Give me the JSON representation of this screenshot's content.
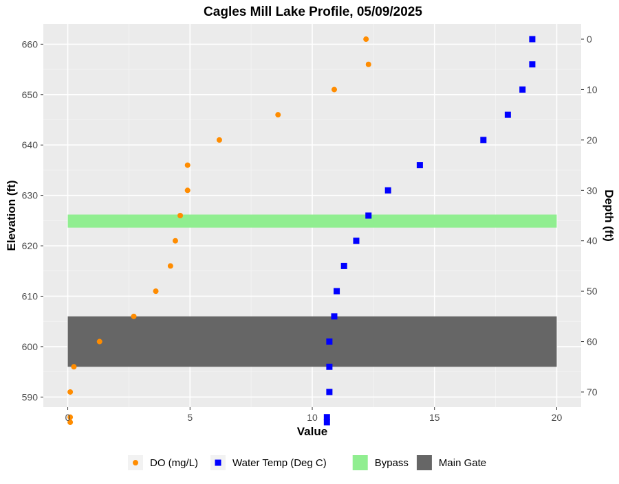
{
  "chart_data": {
    "type": "scatter",
    "title": "Cagles Mill Lake Profile,  05/09/2025",
    "xlabel": "Value",
    "ylabel": "Elevation (ft)",
    "y2label": "Depth (ft)",
    "xlim": [
      -1,
      21
    ],
    "ylim": [
      588,
      664
    ],
    "x_ticks": [
      0,
      5,
      10,
      15,
      20
    ],
    "y_ticks": [
      590,
      600,
      610,
      620,
      630,
      640,
      650,
      660
    ],
    "depth_ticks": [
      0,
      10,
      20,
      30,
      40,
      50,
      60,
      70
    ],
    "surface_elevation": 661,
    "grid": true,
    "legend_position": "bottom",
    "bands": [
      {
        "name": "Bypass",
        "x_range": [
          0,
          20
        ],
        "y_range": [
          623.6,
          626.2
        ],
        "color": "#90ee90"
      },
      {
        "name": "Main Gate",
        "x_range": [
          0,
          20
        ],
        "y_range": [
          596,
          606
        ],
        "color": "#666666"
      }
    ],
    "series": [
      {
        "name": "DO (mg/L)",
        "marker": "circle",
        "color": "#ff8c00",
        "points": [
          {
            "x": 12.2,
            "y": 661
          },
          {
            "x": 12.3,
            "y": 656
          },
          {
            "x": 10.9,
            "y": 651
          },
          {
            "x": 8.6,
            "y": 646
          },
          {
            "x": 6.2,
            "y": 641
          },
          {
            "x": 4.9,
            "y": 636
          },
          {
            "x": 4.9,
            "y": 631
          },
          {
            "x": 4.6,
            "y": 626
          },
          {
            "x": 4.4,
            "y": 621
          },
          {
            "x": 4.2,
            "y": 616
          },
          {
            "x": 3.6,
            "y": 611
          },
          {
            "x": 2.7,
            "y": 606
          },
          {
            "x": 1.3,
            "y": 601
          },
          {
            "x": 0.25,
            "y": 596
          },
          {
            "x": 0.1,
            "y": 591
          },
          {
            "x": 0.1,
            "y": 586
          },
          {
            "x": 0.1,
            "y": 585
          }
        ]
      },
      {
        "name": "Water Temp (Deg C)",
        "marker": "square",
        "color": "#0000ff",
        "points": [
          {
            "x": 19.0,
            "y": 661
          },
          {
            "x": 19.0,
            "y": 656
          },
          {
            "x": 18.6,
            "y": 651
          },
          {
            "x": 18.0,
            "y": 646
          },
          {
            "x": 17.0,
            "y": 641
          },
          {
            "x": 14.4,
            "y": 636
          },
          {
            "x": 13.1,
            "y": 631
          },
          {
            "x": 12.3,
            "y": 626
          },
          {
            "x": 11.8,
            "y": 621
          },
          {
            "x": 11.3,
            "y": 616
          },
          {
            "x": 11.0,
            "y": 611
          },
          {
            "x": 10.9,
            "y": 606
          },
          {
            "x": 10.7,
            "y": 601
          },
          {
            "x": 10.7,
            "y": 596
          },
          {
            "x": 10.7,
            "y": 591
          },
          {
            "x": 10.6,
            "y": 586
          },
          {
            "x": 10.6,
            "y": 585
          }
        ]
      }
    ]
  }
}
